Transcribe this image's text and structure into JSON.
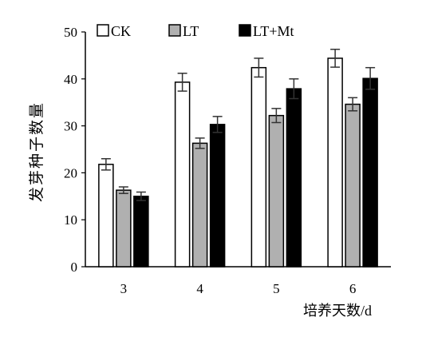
{
  "chart_data": {
    "type": "bar",
    "categories": [
      "3",
      "4",
      "5",
      "6"
    ],
    "series": [
      {
        "name": "CK",
        "values": [
          21.8,
          39.3,
          42.4,
          44.4
        ],
        "errors": [
          1.2,
          1.9,
          2.0,
          1.9
        ],
        "fill": "#ffffff"
      },
      {
        "name": "LT",
        "values": [
          16.3,
          26.3,
          32.2,
          34.6
        ],
        "errors": [
          0.7,
          1.1,
          1.5,
          1.4
        ],
        "fill": "#b0b0b0"
      },
      {
        "name": "LT+Mt",
        "values": [
          15.0,
          30.3,
          37.9,
          40.1
        ],
        "errors": [
          0.9,
          1.7,
          2.1,
          2.3
        ],
        "fill": "#000000"
      }
    ],
    "xlabel": "培养天数/d",
    "ylabel": "发芽种子数量",
    "ylim": [
      0,
      50
    ],
    "yticks": [
      0,
      10,
      20,
      30,
      40,
      50
    ],
    "legend_position": "top",
    "grid": false
  }
}
